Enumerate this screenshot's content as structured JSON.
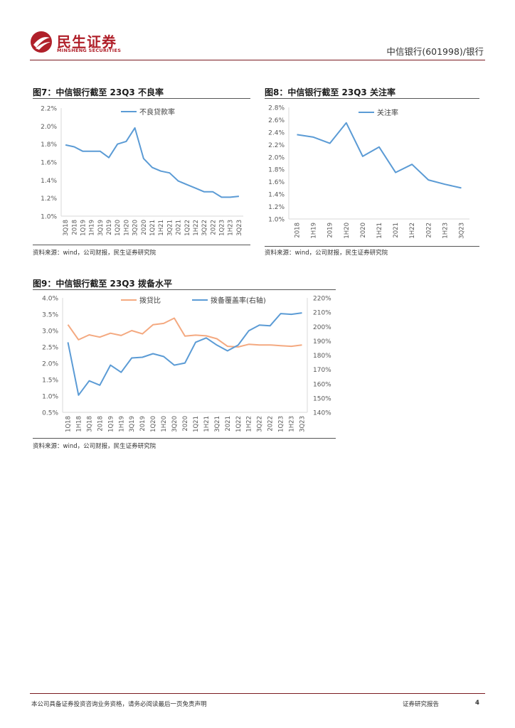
{
  "header": {
    "brand_cn": "民生证券",
    "brand_en": "MINSHENG SECURITIES",
    "right_text": "中信银行(601998)/银行"
  },
  "figures": [
    {
      "title": "图7：中信银行截至 23Q3 不良率",
      "source": "资料来源：wind，公司财报，民生证券研究院"
    },
    {
      "title": "图8：中信银行截至 23Q3 关注率",
      "source": "资料来源：wind，公司财报，民生证券研究院"
    },
    {
      "title": "图9：中信银行截至 23Q3 拨备水平",
      "source": "资料来源：wind，公司财报，民生证券研究院"
    }
  ],
  "footer": {
    "disclaimer": "本公司具备证券投资咨询业务资格，请务必阅读最后一页免责声明",
    "report_type": "证券研究报告",
    "page_number": "4"
  },
  "colors": {
    "brand": "#b0202a",
    "blue": "#5b9bd5",
    "orange": "#f4a980",
    "axis": "#d9d9d9",
    "tick_text": "#595959"
  },
  "chart_data": [
    {
      "type": "line",
      "title": "图7：中信银行截至 23Q3 不良率",
      "categories": [
        "3Q18",
        "2018",
        "1Q19",
        "1H19",
        "3Q19",
        "2019",
        "1Q20",
        "1H20",
        "3Q20",
        "2020",
        "1Q21",
        "1H21",
        "3Q21",
        "2021",
        "1Q22",
        "1H22",
        "3Q22",
        "2022",
        "1Q23",
        "1H23",
        "3Q23"
      ],
      "series": [
        {
          "name": "不良贷款率",
          "values": [
            1.79,
            1.77,
            1.72,
            1.72,
            1.72,
            1.65,
            1.8,
            1.83,
            1.98,
            1.64,
            1.54,
            1.5,
            1.48,
            1.39,
            1.35,
            1.31,
            1.27,
            1.27,
            1.21,
            1.21,
            1.22
          ]
        }
      ],
      "ylim": [
        1.0,
        2.2
      ],
      "yticks": [
        "1.0%",
        "1.2%",
        "1.4%",
        "1.6%",
        "1.8%",
        "2.0%",
        "2.2%"
      ],
      "legend": "top-center"
    },
    {
      "type": "line",
      "title": "图8：中信银行截至 23Q3 关注率",
      "categories": [
        "2018",
        "1H19",
        "2019",
        "1H20",
        "2020",
        "1H21",
        "2021",
        "1H22",
        "2022",
        "1H23",
        "3Q23"
      ],
      "series": [
        {
          "name": "关注率",
          "values": [
            2.36,
            2.32,
            2.22,
            2.55,
            2.01,
            2.16,
            1.75,
            1.88,
            1.63,
            1.56,
            1.5
          ]
        }
      ],
      "ylim": [
        1.0,
        2.8
      ],
      "yticks": [
        "1.0%",
        "1.2%",
        "1.4%",
        "1.6%",
        "1.8%",
        "2.0%",
        "2.2%",
        "2.4%",
        "2.6%",
        "2.8%"
      ],
      "legend": "top-center"
    },
    {
      "type": "line",
      "title": "图9：中信银行截至 23Q3 拨备水平",
      "categories": [
        "1Q18",
        "1H18",
        "3Q18",
        "2018",
        "1Q19",
        "1H19",
        "3Q19",
        "2019",
        "1Q20",
        "1H20",
        "3Q20",
        "2020",
        "1Q21",
        "1H21",
        "3Q21",
        "2021",
        "1Q22",
        "1H22",
        "3Q22",
        "2022",
        "1Q23",
        "1H23",
        "3Q23"
      ],
      "series": [
        {
          "name": "拨贷比",
          "axis": "left",
          "values": [
            3.18,
            2.72,
            2.87,
            2.8,
            2.92,
            2.85,
            3.0,
            2.9,
            3.18,
            3.22,
            3.38,
            2.83,
            2.86,
            2.84,
            2.75,
            2.52,
            2.5,
            2.58,
            2.56,
            2.56,
            2.54,
            2.52,
            2.56
          ]
        },
        {
          "name": "拨备覆盖率(右轴)",
          "axis": "right",
          "values": [
            189,
            152,
            162,
            159,
            173,
            168,
            178,
            178.5,
            181,
            179,
            173,
            174.5,
            189,
            192,
            187,
            183,
            187,
            197,
            201,
            200.5,
            209,
            208.5,
            209.5
          ]
        }
      ],
      "ylim_left": [
        0.5,
        4.0
      ],
      "ylim_right": [
        140,
        220
      ],
      "yticks_left": [
        "0.5%",
        "1.0%",
        "1.5%",
        "2.0%",
        "2.5%",
        "3.0%",
        "3.5%",
        "4.0%"
      ],
      "yticks_right": [
        "140%",
        "150%",
        "160%",
        "170%",
        "180%",
        "190%",
        "200%",
        "210%",
        "220%"
      ],
      "legend": "top-center"
    }
  ]
}
